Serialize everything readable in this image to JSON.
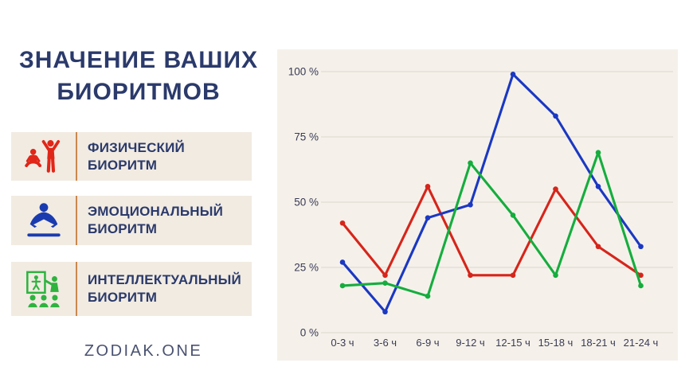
{
  "page": {
    "title_lines": [
      "ЗНАЧЕНИЕ ВАШИХ",
      "БИОРИТМОВ"
    ],
    "footer": "ZODIAK.ONE"
  },
  "legend": {
    "items": [
      {
        "label_line1": "ФИЗИЧЕСКИЙ",
        "label_line2": "БИОРИТМ",
        "icon": "exercising-people-icon",
        "color": "#e02618"
      },
      {
        "label_line1": "ЭМОЦИОНАЛЬНЫЙ",
        "label_line2": "БИОРИТМ",
        "icon": "person-reading-icon",
        "color": "#1a3bb0"
      },
      {
        "label_line1": "ИНТЕЛЛЕКТУАЛЬНЫЙ",
        "label_line2": "БИОРИТМ",
        "icon": "presentation-audience-icon",
        "color": "#2eb33e"
      }
    ]
  },
  "chart_data": {
    "type": "line",
    "title": "",
    "xlabel": "",
    "ylabel": "",
    "categories": [
      "0-3 ч",
      "3-6 ч",
      "6-9 ч",
      "9-12 ч",
      "12-15 ч",
      "15-18 ч",
      "18-21 ч",
      "21-24 ч"
    ],
    "series": [
      {
        "name": "Физический биоритм",
        "color": "#d6251b",
        "values": [
          42,
          22,
          56,
          22,
          22,
          55,
          33,
          22
        ]
      },
      {
        "name": "Эмоциональный биоритм",
        "color": "#1b38c2",
        "values": [
          27,
          8,
          44,
          49,
          99,
          83,
          56,
          33
        ]
      },
      {
        "name": "Интеллектуальный биоритм",
        "color": "#15ad3e",
        "values": [
          18,
          19,
          14,
          65,
          45,
          22,
          69,
          18
        ]
      }
    ],
    "y_ticks": [
      {
        "label": "0 %",
        "value": 0
      },
      {
        "label": "25 %",
        "value": 25
      },
      {
        "label": "50 %",
        "value": 50
      },
      {
        "label": "75 %",
        "value": 75
      },
      {
        "label": "100 %",
        "value": 100
      }
    ],
    "ylim": [
      0,
      107
    ],
    "grid": true,
    "legend_position": "left-panel"
  },
  "theme": {
    "title_color": "#2b3a6b",
    "row_bg": "#f1ebe2",
    "panel_bg": "#f5f1ea",
    "divider_color": "#c9884d",
    "footer_color": "#4a5271",
    "grid_color": "#dcd7ce",
    "axis_label_color": "#3a3a56"
  }
}
